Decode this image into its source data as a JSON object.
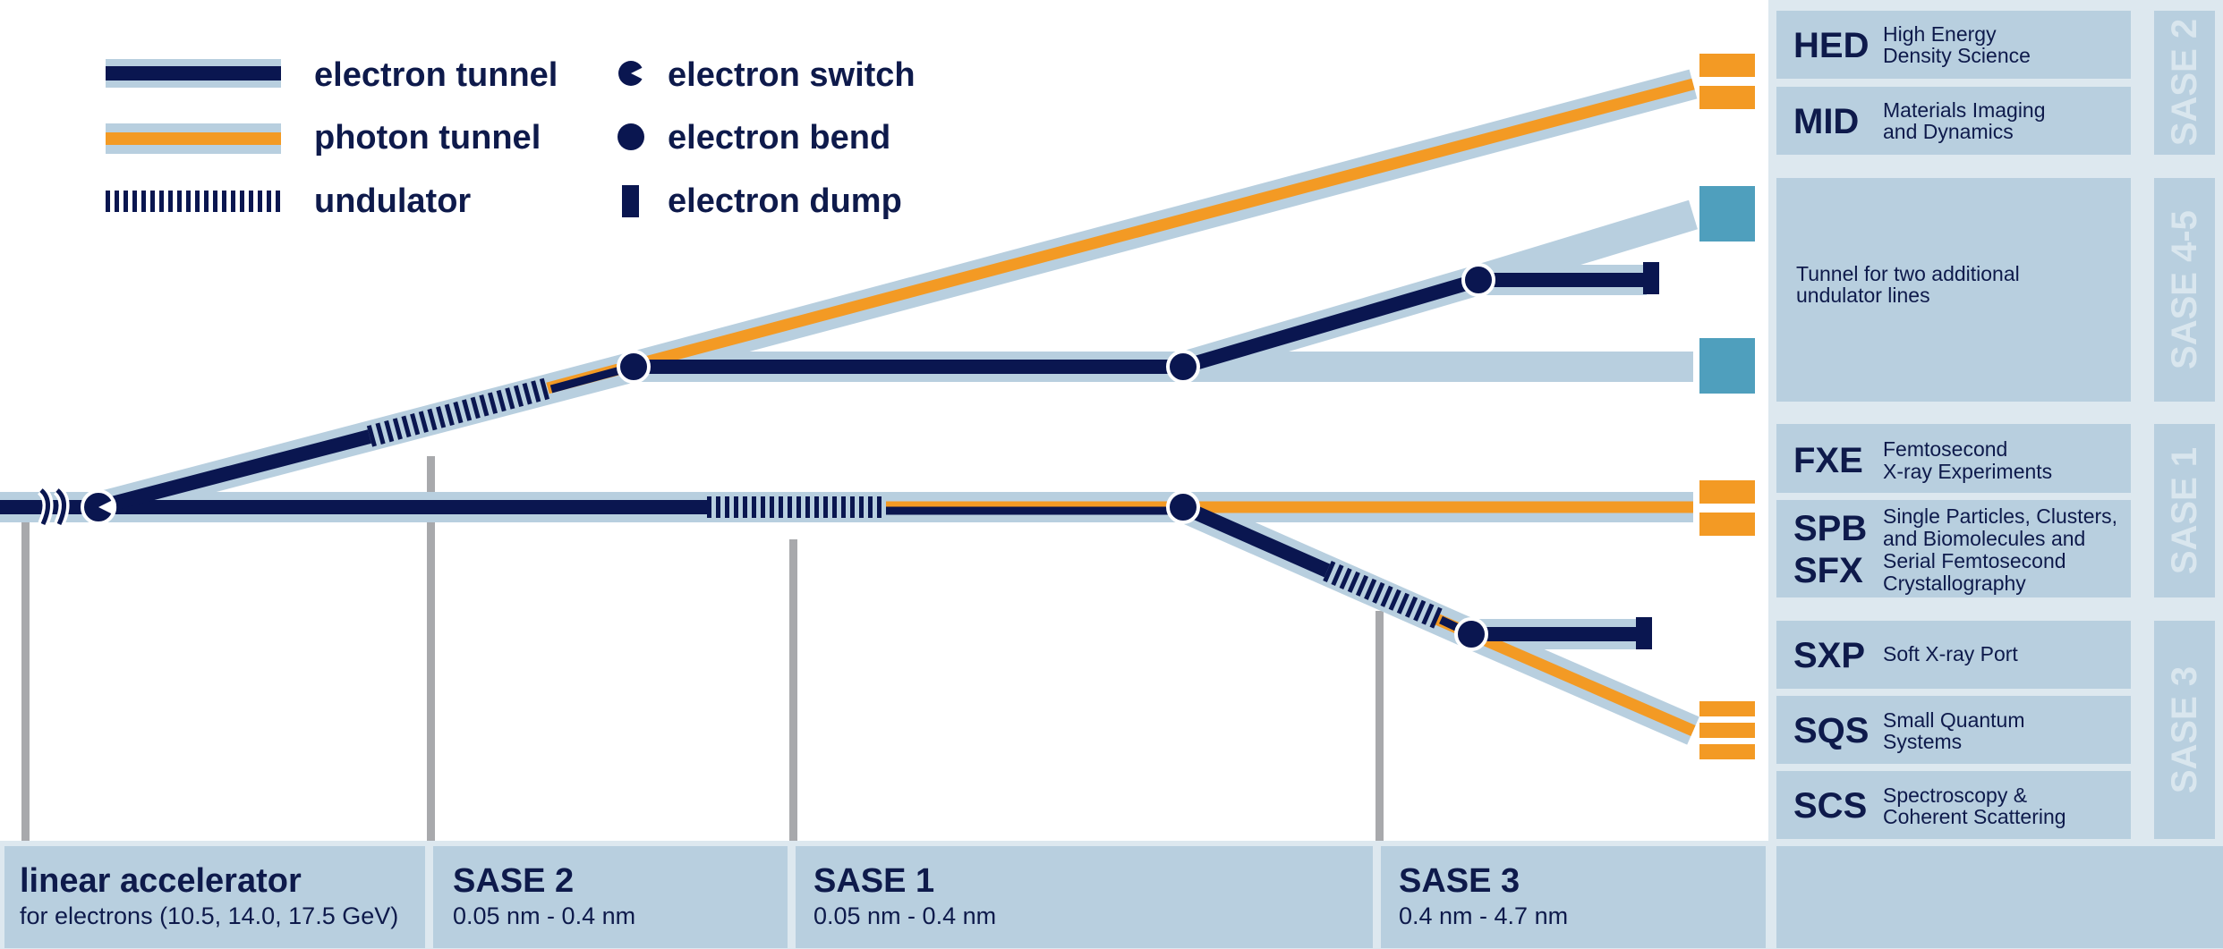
{
  "colors": {
    "electron": "#0a1650",
    "photon": "#f39a24",
    "tunnel": "#b8cfdf",
    "panel": "#b8cfdf",
    "hutch_teal": "#4f9fbd",
    "pillar": "#a8a9ac",
    "text": "#0e1a4b",
    "group_text": "#d9e6ee"
  },
  "legend": {
    "electron_tunnel": "electron tunnel",
    "photon_tunnel": "photon tunnel",
    "undulator": "undulator",
    "electron_switch": "electron switch",
    "electron_bend": "electron bend",
    "electron_dump": "electron dump"
  },
  "instruments": [
    {
      "code": "HED",
      "desc": [
        "High Energy",
        "Density Science"
      ]
    },
    {
      "code": "MID",
      "desc": [
        "Materials Imaging",
        "and Dynamics"
      ]
    },
    {
      "code": "",
      "desc": [
        "Tunnel for two additional",
        "undulator lines"
      ]
    },
    {
      "code": "FXE",
      "desc": [
        "Femtosecond",
        "X-ray Experiments"
      ]
    },
    {
      "code": "SPB",
      "code2": "SFX",
      "desc": [
        "Single Particles, Clusters,",
        "and Biomolecules and",
        "Serial Femtosecond",
        "Crystallography"
      ]
    },
    {
      "code": "SXP",
      "desc": [
        "Soft X-ray Port"
      ]
    },
    {
      "code": "SQS",
      "desc": [
        "Small Quantum",
        "Systems"
      ]
    },
    {
      "code": "SCS",
      "desc": [
        "Spectroscopy &",
        "Coherent Scattering"
      ]
    }
  ],
  "groups": [
    "SASE 2",
    "SASE 4-5",
    "SASE 1",
    "SASE 3"
  ],
  "sections": [
    {
      "title": "linear accelerator",
      "subtitle": "for electrons (10.5, 14.0, 17.5 GeV)"
    },
    {
      "title": "SASE 2",
      "subtitle": "0.05 nm - 0.4 nm"
    },
    {
      "title": "SASE 1",
      "subtitle": "0.05 nm - 0.4 nm"
    },
    {
      "title": "SASE 3",
      "subtitle": "0.4 nm - 4.7 nm"
    }
  ]
}
